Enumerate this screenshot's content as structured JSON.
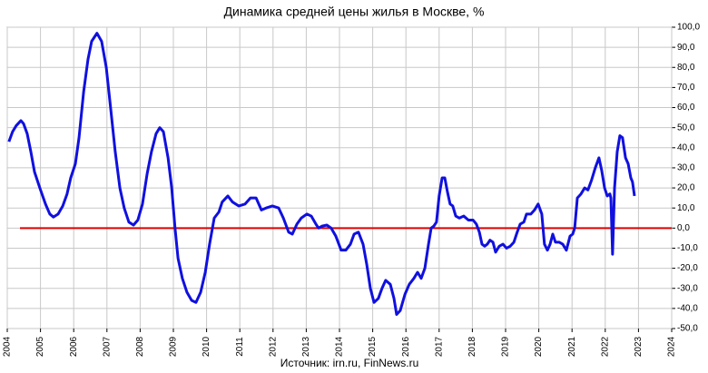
{
  "chart_data": {
    "type": "line",
    "title": "Динамика  средней цены жилья в Москве, %",
    "source": "Источник: irn.ru, FinNews.ru",
    "xlim": [
      2004,
      2024
    ],
    "xticks": [
      2004,
      2005,
      2006,
      2007,
      2008,
      2009,
      2010,
      2011,
      2012,
      2013,
      2014,
      2015,
      2016,
      2017,
      2018,
      2019,
      2020,
      2021,
      2022,
      2023,
      2024
    ],
    "ylim": [
      -50,
      100
    ],
    "yticks": [
      {
        "value": 100,
        "label": "100,0"
      },
      {
        "value": 90,
        "label": "90,0"
      },
      {
        "value": 80,
        "label": "80,0"
      },
      {
        "value": 70,
        "label": "70,0"
      },
      {
        "value": 60,
        "label": "60,0"
      },
      {
        "value": 50,
        "label": "50,0"
      },
      {
        "value": 40,
        "label": "40,0"
      },
      {
        "value": 30,
        "label": "30,0"
      },
      {
        "value": 20,
        "label": "20,0"
      },
      {
        "value": 10,
        "label": "10,0"
      },
      {
        "value": 0,
        "label": "0,0"
      },
      {
        "value": -10,
        "label": "-10,0"
      },
      {
        "value": -20,
        "label": "-20,0"
      },
      {
        "value": -30,
        "label": "-30,0"
      },
      {
        "value": -40,
        "label": "-40,0"
      },
      {
        "value": -50,
        "label": "-50,0"
      }
    ],
    "grid": true,
    "zero_line_color": "#e00000",
    "series": [
      {
        "color": "#1010e0",
        "x": [
          2004.05,
          2004.16,
          2004.27,
          2004.41,
          2004.49,
          2004.6,
          2004.71,
          2004.82,
          2004.98,
          2005.15,
          2005.28,
          2005.39,
          2005.53,
          2005.67,
          2005.8,
          2005.91,
          2006.05,
          2006.16,
          2006.3,
          2006.43,
          2006.54,
          2006.7,
          2006.84,
          2006.98,
          2007.11,
          2007.25,
          2007.39,
          2007.52,
          2007.66,
          2007.8,
          2007.93,
          2008.07,
          2008.21,
          2008.34,
          2008.48,
          2008.59,
          2008.7,
          2008.84,
          2008.95,
          2009.05,
          2009.14,
          2009.27,
          2009.41,
          2009.55,
          2009.68,
          2009.82,
          2009.96,
          2010.09,
          2010.23,
          2010.37,
          2010.47,
          2010.64,
          2010.78,
          2010.97,
          2011.16,
          2011.32,
          2011.49,
          2011.65,
          2011.79,
          2011.98,
          2012.17,
          2012.31,
          2012.47,
          2012.58,
          2012.72,
          2012.85,
          2013.02,
          2013.15,
          2013.29,
          2013.37,
          2013.48,
          2013.62,
          2013.75,
          2013.89,
          2014.05,
          2014.19,
          2014.33,
          2014.44,
          2014.57,
          2014.71,
          2014.82,
          2014.93,
          2015.04,
          2015.17,
          2015.28,
          2015.39,
          2015.53,
          2015.64,
          2015.72,
          2015.83,
          2015.97,
          2016.1,
          2016.24,
          2016.35,
          2016.46,
          2016.57,
          2016.68,
          2016.76,
          2016.84,
          2016.92,
          2017.0,
          2017.09,
          2017.17,
          2017.25,
          2017.33,
          2017.41,
          2017.5,
          2017.61,
          2017.74,
          2017.88,
          2018.02,
          2018.12,
          2018.21,
          2018.29,
          2018.37,
          2018.45,
          2018.53,
          2018.62,
          2018.7,
          2018.81,
          2018.92,
          2019.03,
          2019.14,
          2019.25,
          2019.35,
          2019.44,
          2019.55,
          2019.63,
          2019.76,
          2019.87,
          2019.98,
          2020.09,
          2020.17,
          2020.26,
          2020.34,
          2020.42,
          2020.5,
          2020.61,
          2020.72,
          2020.83,
          2020.94,
          2021.02,
          2021.08,
          2021.16,
          2021.27,
          2021.38,
          2021.48,
          2021.59,
          2021.7,
          2021.81,
          2021.89,
          2021.98,
          2022.06,
          2022.14,
          2022.17,
          2022.22,
          2022.28,
          2022.36,
          2022.44,
          2022.52,
          2022.61,
          2022.69,
          2022.77,
          2022.82,
          2022.88
        ],
        "values": [
          43,
          48,
          51,
          53.5,
          52,
          47,
          38,
          28,
          20,
          12,
          7,
          5.5,
          7,
          11,
          17,
          25,
          32,
          45,
          68,
          84,
          93,
          97,
          93,
          80,
          60,
          38,
          20,
          10,
          3,
          1.5,
          4,
          12,
          27,
          38,
          47,
          50,
          48,
          35,
          20,
          0,
          -15,
          -25,
          -32,
          -36,
          -37,
          -32,
          -22,
          -8,
          5,
          8,
          13,
          16,
          13,
          11,
          12,
          15,
          15,
          9,
          10,
          11,
          10,
          5,
          -2,
          -3,
          2,
          5,
          7,
          6,
          2,
          0,
          1,
          1.5,
          0,
          -4,
          -11,
          -11,
          -8,
          -3,
          -2,
          -8,
          -18,
          -30,
          -37,
          -35,
          -30,
          -26,
          -28,
          -35,
          -43,
          -41,
          -33,
          -28,
          -25,
          -22,
          -25,
          -20,
          -8,
          0,
          1,
          3,
          16,
          25,
          25,
          18,
          12,
          11,
          6,
          5,
          6,
          4,
          4,
          2,
          -2,
          -8,
          -9,
          -8,
          -6,
          -7,
          -12,
          -9,
          -8,
          -10,
          -9,
          -7,
          -2,
          2,
          3,
          7,
          7,
          9,
          12,
          7,
          -8,
          -11,
          -8,
          -3,
          -7,
          -7,
          -8,
          -11,
          -4,
          -3,
          0,
          15,
          17,
          20,
          19,
          24,
          30,
          35,
          29,
          20,
          16,
          17,
          15,
          -13,
          20,
          38,
          46,
          45,
          35,
          32,
          25,
          23,
          16
        ]
      }
    ]
  }
}
